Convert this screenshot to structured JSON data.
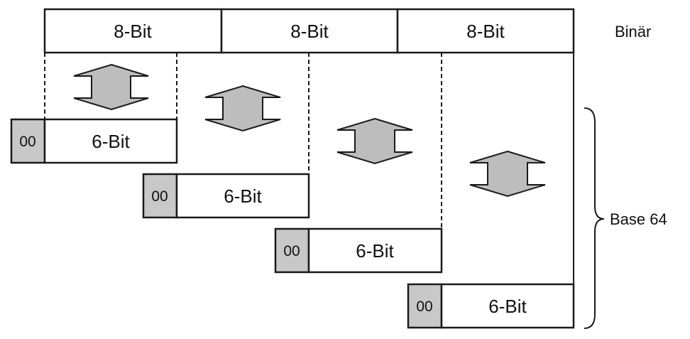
{
  "binary": {
    "bytes": [
      {
        "label": "8-Bit"
      },
      {
        "label": "8-Bit"
      },
      {
        "label": "8-Bit"
      }
    ],
    "label": "Binär"
  },
  "base64": {
    "groups": [
      {
        "pad_label": "00",
        "label": "6-Bit"
      },
      {
        "pad_label": "00",
        "label": "6-Bit"
      },
      {
        "pad_label": "00",
        "label": "6-Bit"
      },
      {
        "pad_label": "00",
        "label": "6-Bit"
      }
    ],
    "label": "Base 64"
  },
  "colors": {
    "stroke": "#1a1a1a",
    "pad_fill": "#c8c8c8",
    "arrow_fill": "#bdbdbd",
    "box_fill": "#ffffff"
  },
  "icons": {
    "conversion_arrow": "double-headed-vertical-arrow",
    "grouping_brace": "right-curly-brace"
  }
}
